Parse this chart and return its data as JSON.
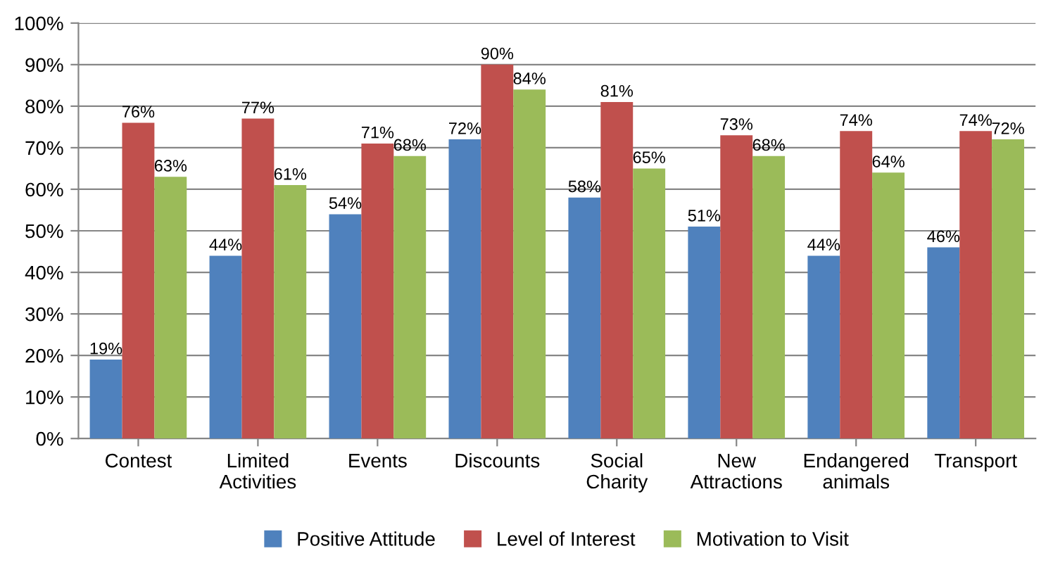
{
  "chart_data": {
    "type": "bar",
    "categories": [
      "Contest",
      "Limited\nActivities",
      "Events",
      "Discounts",
      "Social\nCharity",
      "New\nAttractions",
      "Endangered\nanimals",
      "Transport"
    ],
    "series": [
      {
        "name": "Positive Attitude",
        "color": "#4f81bd",
        "values": [
          19,
          44,
          54,
          72,
          58,
          51,
          44,
          46
        ],
        "value_labels": [
          "19%",
          "44%",
          "54%",
          "72%",
          "58%",
          "51%",
          "44%",
          "46%"
        ]
      },
      {
        "name": "Level of Interest",
        "color": "#c0504d",
        "values": [
          76,
          77,
          71,
          90,
          81,
          73,
          74,
          74
        ],
        "value_labels": [
          "76%",
          "77%",
          "71%",
          "90%",
          "81%",
          "73%",
          "74%",
          "74%"
        ]
      },
      {
        "name": "Motivation to Visit",
        "color": "#9bbb59",
        "values": [
          63,
          61,
          68,
          84,
          65,
          68,
          64,
          72
        ],
        "value_labels": [
          "63%",
          "61%",
          "68%",
          "84%",
          "65%",
          "68%",
          "64%",
          "72%"
        ]
      }
    ],
    "ylim": [
      0,
      100
    ],
    "yticks": [
      {
        "value": 0,
        "label": "0%"
      },
      {
        "value": 10,
        "label": "10%"
      },
      {
        "value": 20,
        "label": "20%"
      },
      {
        "value": 30,
        "label": "30%"
      },
      {
        "value": 40,
        "label": "40%"
      },
      {
        "value": 50,
        "label": "50%"
      },
      {
        "value": 60,
        "label": "60%"
      },
      {
        "value": 70,
        "label": "70%"
      },
      {
        "value": 80,
        "label": "80%"
      },
      {
        "value": 90,
        "label": "90%"
      },
      {
        "value": 100,
        "label": "100%"
      }
    ],
    "grid": "y",
    "legend": "bottom"
  }
}
